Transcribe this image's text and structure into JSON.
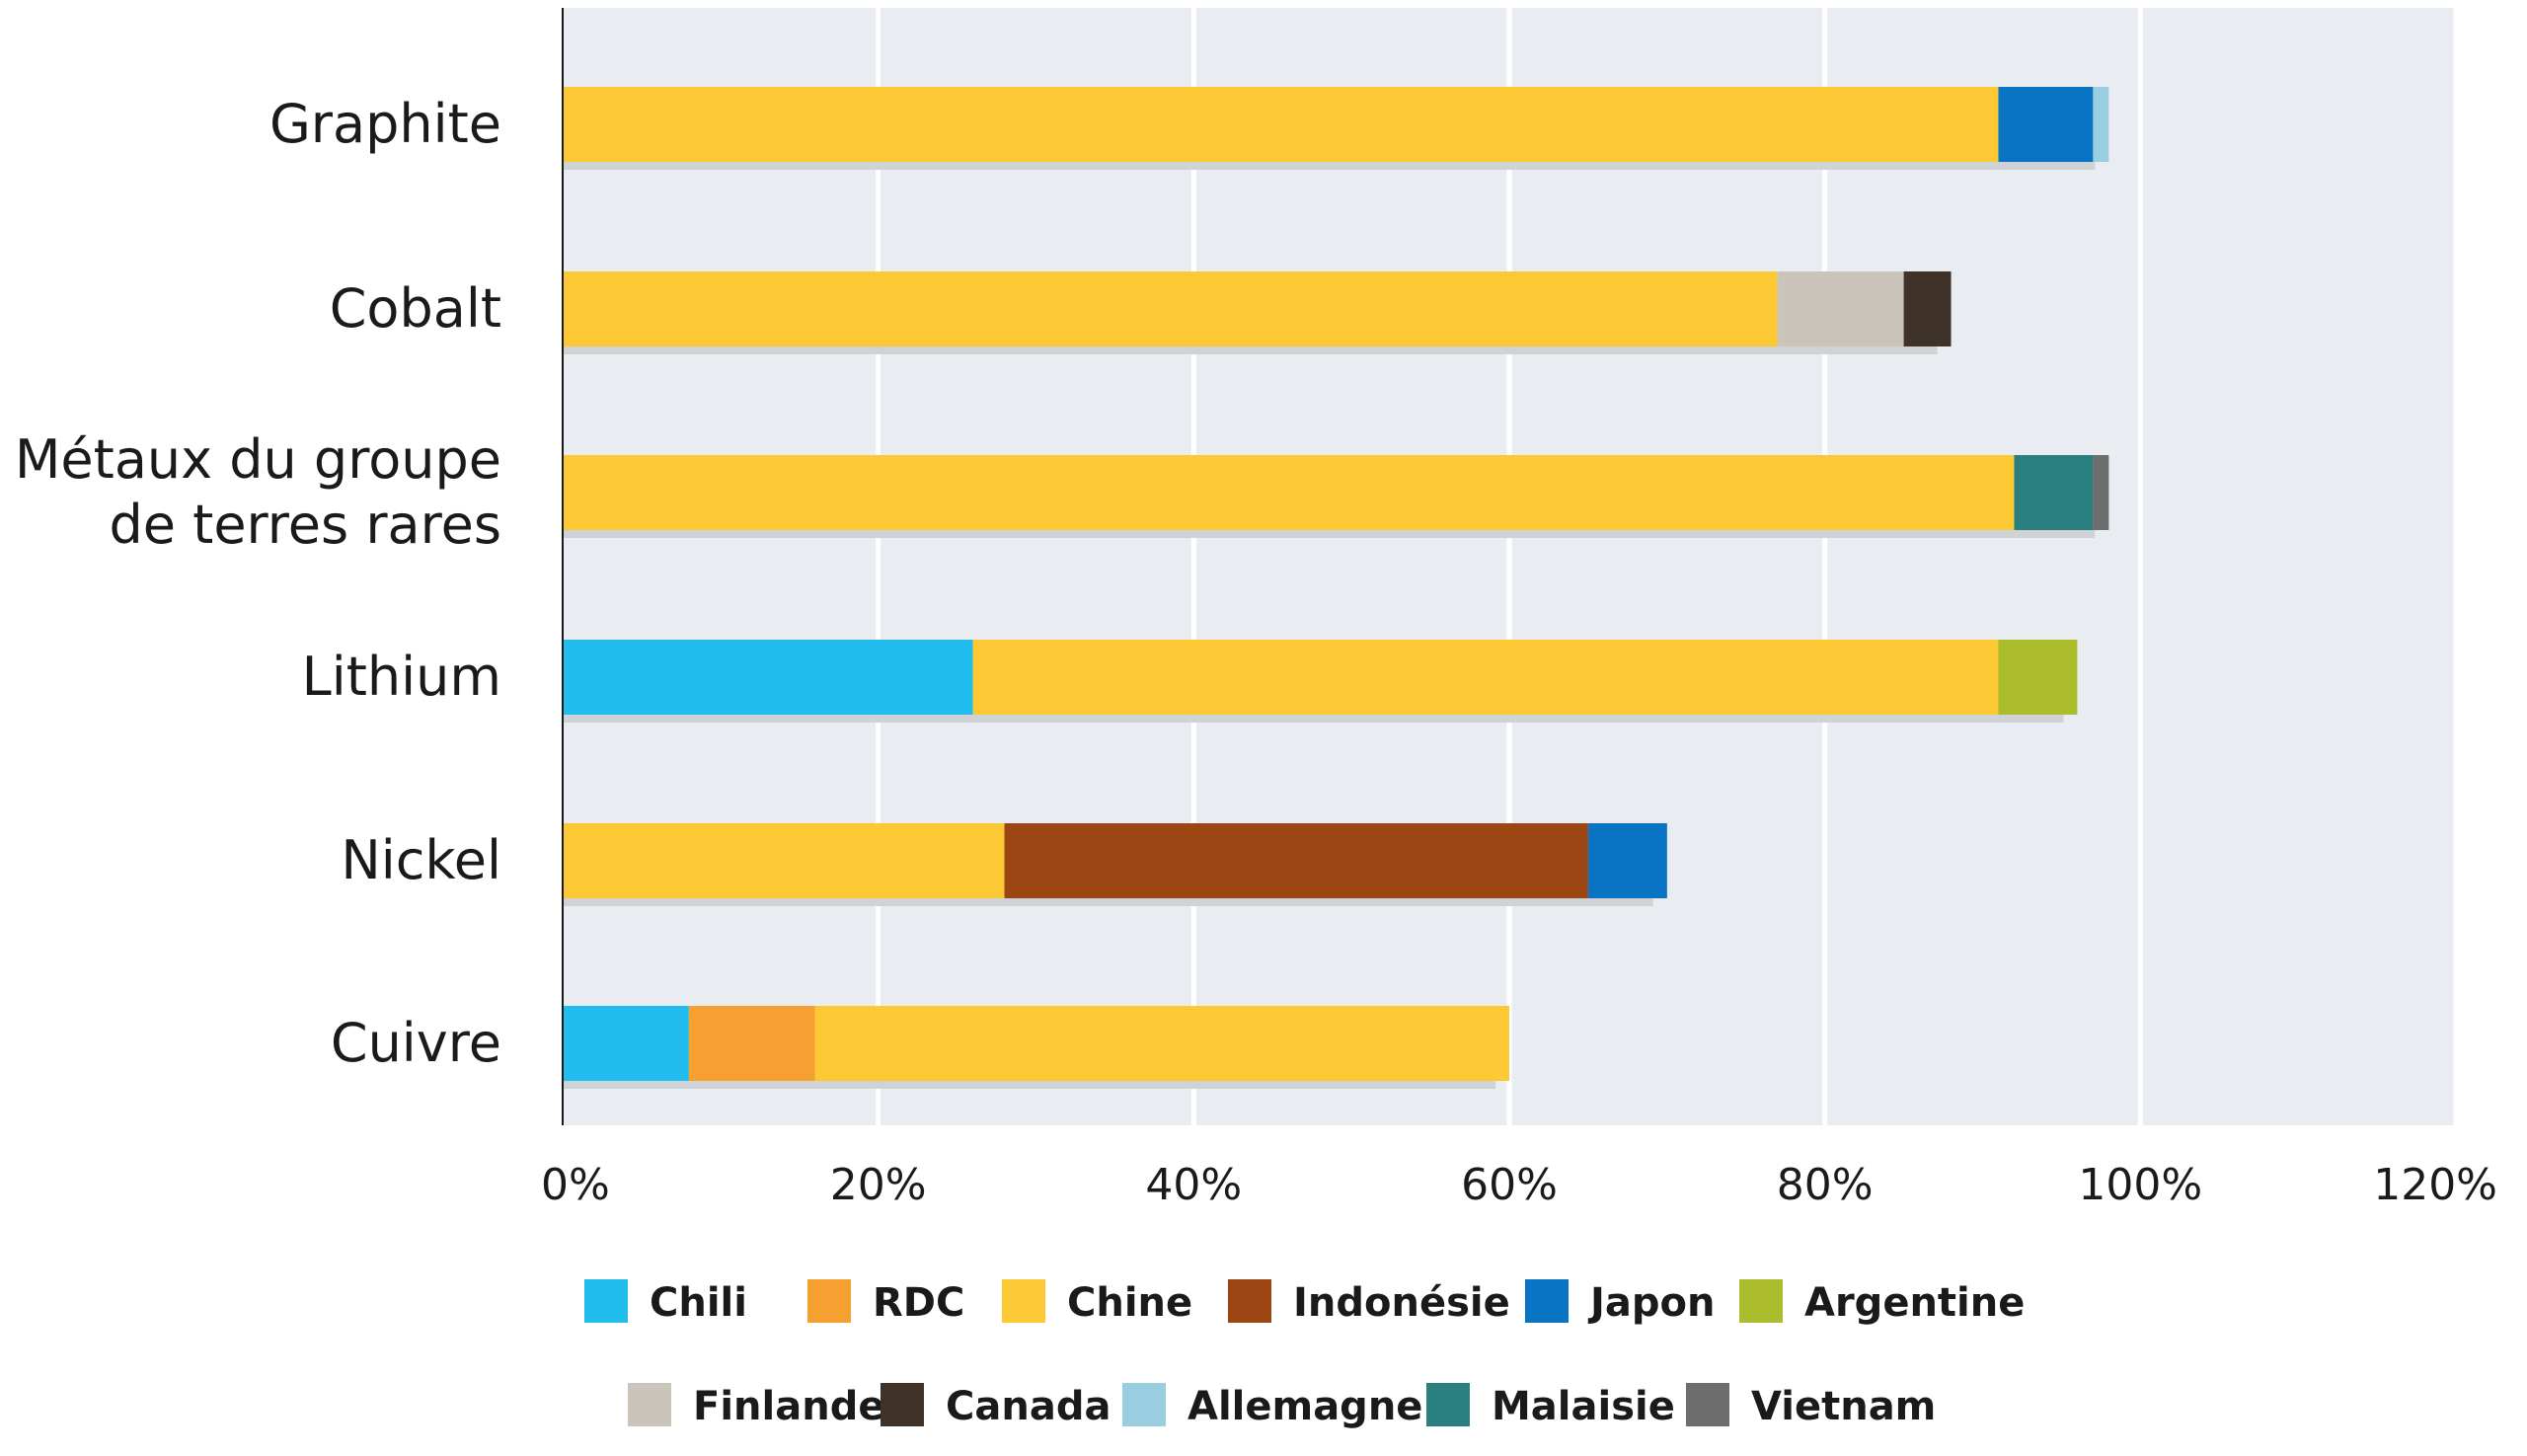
{
  "chart_data": {
    "type": "bar",
    "orientation": "horizontal",
    "stacked": true,
    "categories": [
      "Graphite",
      "Cobalt",
      "Métaux du groupe\nde terres rares",
      "Lithium",
      "Nickel",
      "Cuivre"
    ],
    "series": [
      {
        "name": "Chili",
        "color": "#21bdee",
        "values": [
          0,
          0,
          0,
          26,
          0,
          8
        ]
      },
      {
        "name": "RDC",
        "color": "#f5a030",
        "values": [
          0,
          0,
          0,
          0,
          0,
          8
        ]
      },
      {
        "name": "Chine",
        "color": "#fcc935",
        "values": [
          91,
          77,
          92,
          65,
          28,
          44
        ]
      },
      {
        "name": "Indonésie",
        "color": "#9c4713",
        "values": [
          0,
          0,
          0,
          0,
          37,
          0
        ]
      },
      {
        "name": "Japon",
        "color": "#0874c3",
        "values": [
          6,
          0,
          0,
          0,
          5,
          0
        ]
      },
      {
        "name": "Argentine",
        "color": "#abbd2d",
        "values": [
          0,
          0,
          0,
          5,
          0,
          0
        ]
      },
      {
        "name": "Finlande",
        "color": "#cbc4bb",
        "values": [
          0,
          8,
          0,
          0,
          0,
          0
        ]
      },
      {
        "name": "Canada",
        "color": "#3e3229",
        "values": [
          0,
          3,
          0,
          0,
          0,
          0
        ]
      },
      {
        "name": "Allemagne",
        "color": "#98cee0",
        "values": [
          1,
          0,
          0,
          0,
          0,
          0
        ]
      },
      {
        "name": "Malaisie",
        "color": "#2a7f80",
        "values": [
          0,
          0,
          5,
          0,
          0,
          0
        ]
      },
      {
        "name": "Vietnam",
        "color": "#6d6d6d",
        "values": [
          0,
          0,
          1,
          0,
          0,
          0
        ]
      }
    ],
    "x_ticks": [
      "0%",
      "20%",
      "40%",
      "60%",
      "80%",
      "100%",
      "120%"
    ],
    "xlim": [
      0,
      120
    ],
    "grid": true,
    "legend_position": "bottom",
    "plot_background": "#e9edf1",
    "gridline_color": "#ffffff",
    "bar_shadow_color": "#cfd3d6"
  }
}
